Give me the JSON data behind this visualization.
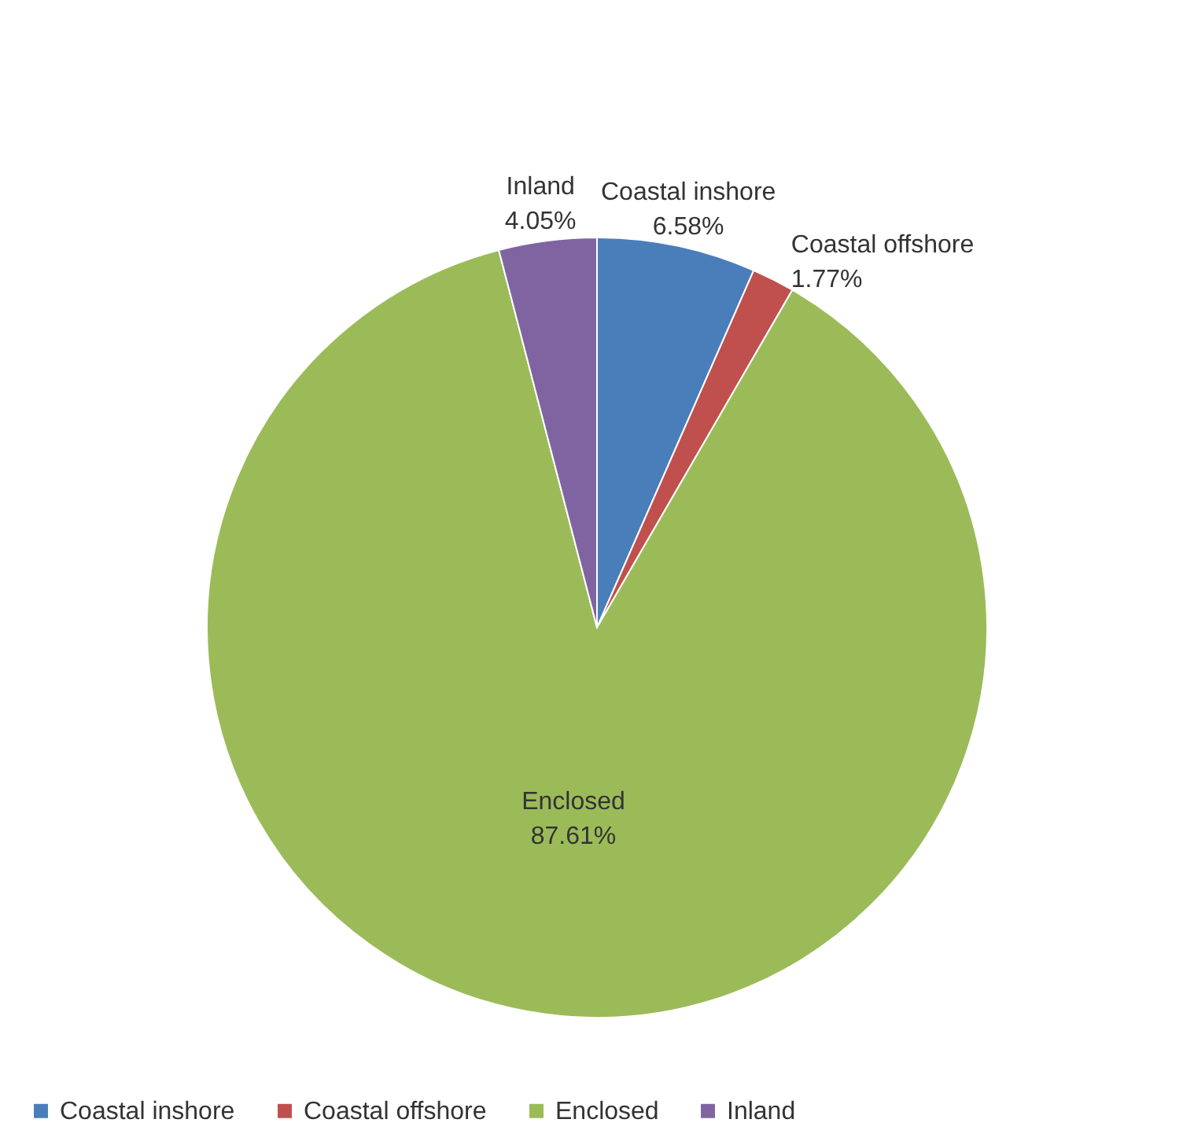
{
  "chart_data": {
    "type": "pie",
    "categories": [
      "Coastal inshore",
      "Coastal offshore",
      "Enclosed",
      "Inland"
    ],
    "values": [
      6.58,
      1.77,
      87.61,
      4.05
    ],
    "value_labels": [
      "6.58%",
      "1.77%",
      "87.61%",
      "4.05%"
    ],
    "colors": [
      "#4a7ebb",
      "#c0504d",
      "#9bbb59",
      "#8064a2"
    ],
    "legend": "bottom"
  }
}
